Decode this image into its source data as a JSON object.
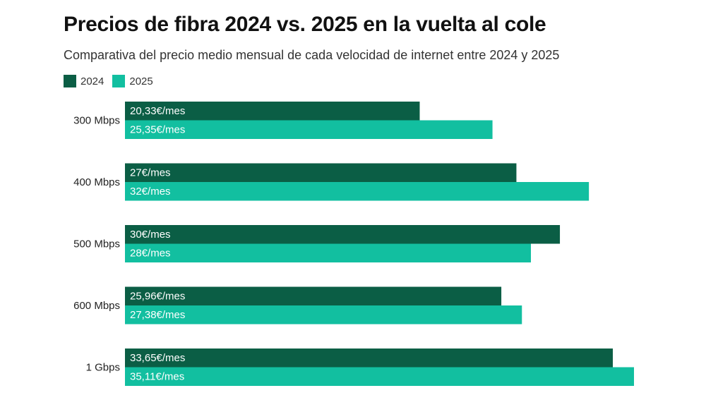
{
  "chart_data": {
    "type": "bar",
    "orientation": "horizontal",
    "title": "Precios de fibra 2024 vs. 2025 en la vuelta al cole",
    "subtitle": "Comparativa del precio medio mensual de cada velocidad de internet entre 2024 y 2025",
    "categories": [
      "300 Mbps",
      "400 Mbps",
      "500 Mbps",
      "600 Mbps",
      "1 Gbps"
    ],
    "series": [
      {
        "name": "2024",
        "color": "#0b5e45",
        "values": [
          20.33,
          27,
          30,
          25.96,
          33.65
        ],
        "labels": [
          "20,33€/mes",
          "27€/mes",
          "30€/mes",
          "25,96€/mes",
          "33,65€/mes"
        ]
      },
      {
        "name": "2025",
        "color": "#12bfa0",
        "values": [
          25.35,
          32,
          28,
          27.38,
          35.11
        ],
        "labels": [
          "25,35€/mes",
          "32€/mes",
          "28€/mes",
          "27,38€/mes",
          "35,11€/mes"
        ]
      }
    ],
    "xlim": [
      0,
      35.11
    ],
    "grid": false,
    "legend_position": "top-left"
  }
}
